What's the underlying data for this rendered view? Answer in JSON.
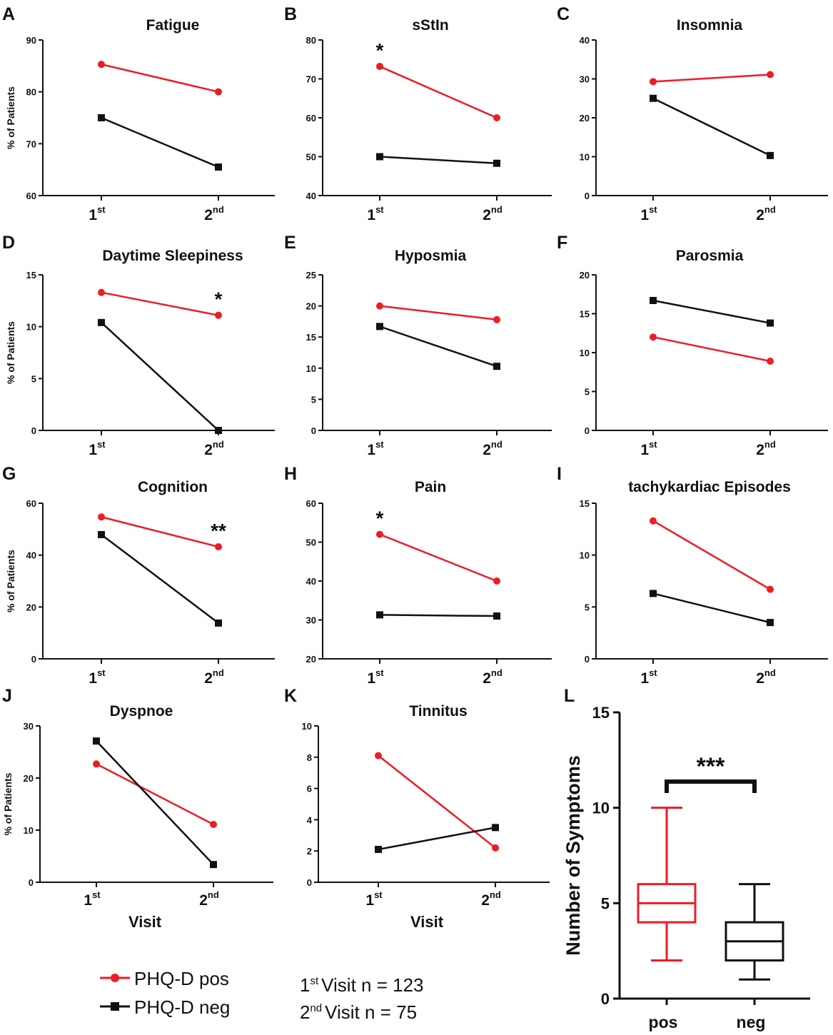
{
  "colors": {
    "pos": "#ee1c25",
    "neg": "#111111",
    "axis": "#111111"
  },
  "chart_data": [
    {
      "panel": "A",
      "type": "line",
      "title": "Fatigue",
      "ylabel": "% of Patients",
      "xlabel": "",
      "categories": [
        [
          "1",
          "st"
        ],
        [
          "2",
          "nd"
        ]
      ],
      "ylim": [
        60,
        90
      ],
      "yticks": [
        60,
        70,
        80,
        90
      ],
      "series": [
        {
          "key": "pos",
          "values": [
            85.3,
            80.0
          ]
        },
        {
          "key": "neg",
          "values": [
            75.0,
            65.5
          ]
        }
      ],
      "annotations": []
    },
    {
      "panel": "B",
      "type": "line",
      "title": "sStIn",
      "ylabel": "",
      "xlabel": "",
      "categories": [
        [
          "1",
          "st"
        ],
        [
          "2",
          "nd"
        ]
      ],
      "ylim": [
        40,
        80
      ],
      "yticks": [
        40,
        50,
        60,
        70,
        80
      ],
      "series": [
        {
          "key": "pos",
          "values": [
            73.2,
            60.0
          ]
        },
        {
          "key": "neg",
          "values": [
            50.0,
            48.3
          ]
        }
      ],
      "annotations": [
        {
          "text": "*",
          "index": 0
        }
      ]
    },
    {
      "panel": "C",
      "type": "line",
      "title": "Insomnia",
      "ylabel": "",
      "xlabel": "",
      "categories": [
        [
          "1",
          "st"
        ],
        [
          "2",
          "nd"
        ]
      ],
      "ylim": [
        0,
        40
      ],
      "yticks": [
        0,
        10,
        20,
        30,
        40
      ],
      "series": [
        {
          "key": "pos",
          "values": [
            29.3,
            31.1
          ]
        },
        {
          "key": "neg",
          "values": [
            25.0,
            10.3
          ]
        }
      ],
      "annotations": []
    },
    {
      "panel": "D",
      "type": "line",
      "title": "Daytime Sleepiness",
      "ylabel": "% of Patients",
      "xlabel": "",
      "categories": [
        [
          "1",
          "st"
        ],
        [
          "2",
          "nd"
        ]
      ],
      "ylim": [
        0,
        15
      ],
      "yticks": [
        0,
        5,
        10,
        15
      ],
      "series": [
        {
          "key": "pos",
          "values": [
            13.3,
            11.1
          ]
        },
        {
          "key": "neg",
          "values": [
            10.4,
            0.0
          ]
        }
      ],
      "annotations": [
        {
          "text": "*",
          "index": 1
        }
      ]
    },
    {
      "panel": "E",
      "type": "line",
      "title": "Hyposmia",
      "ylabel": "",
      "xlabel": "",
      "categories": [
        [
          "1",
          "st"
        ],
        [
          "2",
          "nd"
        ]
      ],
      "ylim": [
        0,
        25
      ],
      "yticks": [
        0,
        5,
        10,
        15,
        20,
        25
      ],
      "series": [
        {
          "key": "pos",
          "values": [
            20.0,
            17.8
          ]
        },
        {
          "key": "neg",
          "values": [
            16.7,
            10.3
          ]
        }
      ],
      "annotations": []
    },
    {
      "panel": "F",
      "type": "line",
      "title": "Parosmia",
      "ylabel": "",
      "xlabel": "",
      "categories": [
        [
          "1",
          "st"
        ],
        [
          "2",
          "nd"
        ]
      ],
      "ylim": [
        0,
        20
      ],
      "yticks": [
        0,
        5,
        10,
        15,
        20
      ],
      "series": [
        {
          "key": "pos",
          "values": [
            12.0,
            8.9
          ]
        },
        {
          "key": "neg",
          "values": [
            16.7,
            13.8
          ]
        }
      ],
      "annotations": []
    },
    {
      "panel": "G",
      "type": "line",
      "title": "Cognition",
      "ylabel": "% of Patients",
      "xlabel": "",
      "categories": [
        [
          "1",
          "st"
        ],
        [
          "2",
          "nd"
        ]
      ],
      "ylim": [
        0,
        60
      ],
      "yticks": [
        0,
        20,
        40,
        60
      ],
      "series": [
        {
          "key": "pos",
          "values": [
            54.7,
            43.2
          ]
        },
        {
          "key": "neg",
          "values": [
            47.9,
            13.8
          ]
        }
      ],
      "annotations": [
        {
          "text": "**",
          "index": 1
        }
      ]
    },
    {
      "panel": "H",
      "type": "line",
      "title": "Pain",
      "ylabel": "",
      "xlabel": "",
      "categories": [
        [
          "1",
          "st"
        ],
        [
          "2",
          "nd"
        ]
      ],
      "ylim": [
        20,
        60
      ],
      "yticks": [
        20,
        30,
        40,
        50,
        60
      ],
      "series": [
        {
          "key": "pos",
          "values": [
            52.0,
            40.0
          ]
        },
        {
          "key": "neg",
          "values": [
            31.3,
            31.0
          ]
        }
      ],
      "annotations": [
        {
          "text": "*",
          "index": 0
        }
      ]
    },
    {
      "panel": "I",
      "type": "line",
      "title": "tachykardiac Episodes",
      "ylabel": "",
      "xlabel": "",
      "categories": [
        [
          "1",
          "st"
        ],
        [
          "2",
          "nd"
        ]
      ],
      "ylim": [
        0,
        15
      ],
      "yticks": [
        0,
        5,
        10,
        15
      ],
      "series": [
        {
          "key": "pos",
          "values": [
            13.3,
            6.7
          ]
        },
        {
          "key": "neg",
          "values": [
            6.3,
            3.5
          ]
        }
      ],
      "annotations": []
    },
    {
      "panel": "J",
      "type": "line",
      "title": "Dyspnoe",
      "ylabel": "% of Patients",
      "xlabel": "Visit",
      "categories": [
        [
          "1",
          "st"
        ],
        [
          "2",
          "nd"
        ]
      ],
      "ylim": [
        0,
        30
      ],
      "yticks": [
        0,
        10,
        20,
        30
      ],
      "series": [
        {
          "key": "pos",
          "values": [
            22.7,
            11.1
          ]
        },
        {
          "key": "neg",
          "values": [
            27.1,
            3.4
          ]
        }
      ],
      "annotations": []
    },
    {
      "panel": "K",
      "type": "line",
      "title": "Tinnitus",
      "ylabel": "",
      "xlabel": "Visit",
      "categories": [
        [
          "1",
          "st"
        ],
        [
          "2",
          "nd"
        ]
      ],
      "ylim": [
        0,
        10
      ],
      "yticks": [
        0,
        2,
        4,
        6,
        8,
        10
      ],
      "series": [
        {
          "key": "pos",
          "values": [
            8.1,
            2.2
          ]
        },
        {
          "key": "neg",
          "values": [
            2.1,
            3.5
          ]
        }
      ],
      "annotations": []
    },
    {
      "panel": "L",
      "type": "box",
      "title": "",
      "ylabel": "Number of Symptoms",
      "xlabel": "",
      "categories": [
        "pos",
        "neg"
      ],
      "ylim": [
        0,
        15
      ],
      "yticks": [
        0,
        5,
        10,
        15
      ],
      "boxes": [
        {
          "key": "pos",
          "min": 2,
          "q1": 4,
          "median": 5,
          "q3": 6,
          "max": 10
        },
        {
          "key": "neg",
          "min": 1,
          "q1": 2,
          "median": 3,
          "q3": 4,
          "max": 6
        }
      ],
      "annotations": [
        {
          "text": "***"
        }
      ]
    }
  ],
  "legend": {
    "pos_label": "PHQ-D pos",
    "neg_label": "PHQ-D neg"
  },
  "notes": {
    "visit1_num": "1",
    "visit1_sup": "st",
    "visit1_text": "Visit n = 123",
    "visit2_num": "2",
    "visit2_sup": "nd",
    "visit2_text": "Visit n = 75"
  }
}
